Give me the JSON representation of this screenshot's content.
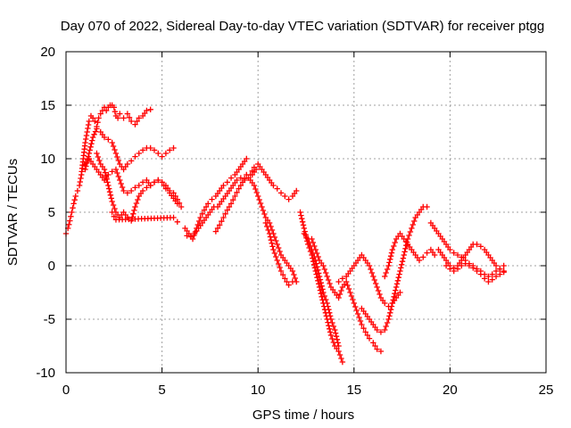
{
  "chart_data": {
    "type": "scatter",
    "title": "Day 070 of 2022, Sidereal Day-to-day VTEC variation (SDTVAR) for receiver ptgg",
    "xlabel": "GPS time / hours",
    "ylabel": "SDTVAR / TECUs",
    "xlim": [
      0,
      25
    ],
    "ylim": [
      -10,
      20
    ],
    "xticks": [
      "0",
      "5",
      "10",
      "15",
      "20",
      "25"
    ],
    "yticks": [
      "-10",
      "-5",
      "0",
      "5",
      "10",
      "15",
      "20"
    ],
    "grid": true,
    "marker": "plus",
    "color": "#ff0000",
    "series": [
      {
        "x": [
          0.0,
          0.1,
          0.2,
          0.3,
          0.4,
          0.5,
          0.6,
          0.7,
          0.8,
          0.9,
          1.0,
          1.1,
          1.2,
          1.3,
          1.4,
          1.5,
          1.6,
          1.7,
          1.8,
          1.9,
          2.0,
          2.1,
          2.2,
          2.3,
          2.4,
          2.5,
          2.6,
          2.7,
          2.8,
          3.0,
          3.2,
          3.4,
          3.6,
          3.8,
          4.0,
          4.2,
          4.4
        ],
        "y": [
          3.0,
          3.5,
          4.2,
          5.0,
          5.8,
          6.5,
          7.0,
          7.5,
          8.5,
          10.0,
          11.5,
          12.5,
          13.5,
          14.0,
          13.8,
          13.5,
          13.0,
          13.8,
          14.2,
          14.5,
          14.8,
          14.5,
          14.8,
          15.0,
          15.0,
          14.8,
          14.0,
          13.8,
          14.2,
          13.8,
          14.2,
          13.5,
          13.2,
          13.8,
          14.0,
          14.5,
          14.6
        ]
      },
      {
        "x": [
          1.0,
          1.2,
          1.4,
          1.6,
          1.8,
          2.0,
          2.2,
          2.4,
          2.6,
          2.8,
          3.0,
          3.2,
          3.4,
          3.6,
          3.8,
          4.0,
          4.2,
          4.4,
          4.6,
          4.8,
          5.0,
          5.2,
          5.4,
          5.6
        ],
        "y": [
          9.0,
          10.5,
          12.0,
          12.8,
          12.5,
          12.0,
          11.8,
          11.5,
          10.5,
          9.5,
          9.0,
          9.5,
          9.8,
          10.2,
          10.5,
          10.8,
          11.0,
          11.0,
          10.8,
          10.5,
          10.2,
          10.5,
          10.8,
          11.0
        ]
      },
      {
        "x": [
          1.0,
          1.2,
          1.4,
          1.6,
          1.8,
          2.0,
          2.2,
          2.4,
          2.6,
          2.8,
          3.0,
          3.2,
          3.4,
          3.6,
          3.8,
          4.0,
          4.2,
          4.4,
          4.6,
          4.8,
          5.0,
          5.2,
          5.4,
          5.6,
          5.8
        ],
        "y": [
          9.5,
          10.0,
          9.5,
          9.0,
          8.5,
          8.0,
          8.5,
          8.8,
          9.0,
          8.0,
          7.0,
          6.8,
          7.0,
          7.3,
          7.5,
          7.8,
          8.0,
          7.5,
          7.8,
          8.0,
          7.8,
          7.2,
          6.8,
          6.3,
          5.8
        ]
      },
      {
        "x": [
          1.6,
          1.8,
          2.0,
          2.2,
          2.4,
          2.6,
          2.8,
          3.0,
          3.2,
          3.4,
          3.6,
          3.8,
          4.0,
          4.2,
          4.4,
          4.6,
          4.8,
          5.0,
          5.2,
          5.4,
          5.6,
          5.8,
          6.0
        ],
        "y": [
          10.5,
          9.5,
          9.0,
          7.5,
          6.0,
          5.0,
          4.5,
          5.0,
          4.5,
          4.2,
          5.5,
          6.5,
          7.0,
          7.3,
          7.5,
          7.8,
          8.0,
          7.8,
          7.5,
          7.0,
          6.8,
          6.2,
          5.5
        ]
      },
      {
        "x": [
          2.4,
          2.5,
          2.6,
          5.6,
          5.8
        ],
        "y": [
          5.0,
          4.6,
          4.3,
          4.5,
          4.1
        ]
      },
      {
        "x": [
          6.2,
          6.4,
          6.6,
          6.8,
          7.0,
          7.2,
          7.4,
          7.6,
          7.8,
          8.0,
          8.2,
          8.4,
          8.6,
          8.8,
          9.0,
          9.2,
          9.4
        ],
        "y": [
          3.5,
          3.0,
          2.5,
          3.5,
          4.5,
          5.2,
          5.8,
          6.2,
          6.5,
          7.0,
          7.5,
          7.8,
          8.2,
          8.5,
          9.0,
          9.5,
          10.0
        ]
      },
      {
        "x": [
          6.3,
          6.5,
          6.7,
          6.9,
          7.1,
          7.3,
          7.5,
          7.7,
          7.9,
          8.1,
          8.3,
          8.5,
          8.7,
          8.9,
          9.1,
          9.3,
          9.5,
          9.7,
          9.9
        ],
        "y": [
          2.8,
          2.7,
          3.0,
          3.5,
          4.0,
          4.5,
          5.0,
          5.5,
          5.5,
          6.0,
          6.5,
          7.0,
          7.5,
          8.0,
          8.2,
          8.0,
          8.2,
          8.5,
          9.0
        ]
      },
      {
        "x": [
          7.8,
          8.0,
          8.2,
          8.4,
          8.6,
          8.8,
          9.0,
          9.2,
          9.4,
          9.6,
          9.8,
          10.0,
          10.2,
          10.4,
          10.6,
          10.8,
          11.0,
          11.2,
          11.4,
          11.6,
          11.8,
          12.0
        ],
        "y": [
          3.2,
          3.8,
          4.5,
          5.2,
          5.8,
          6.5,
          7.2,
          7.8,
          8.5,
          8.5,
          9.2,
          9.5,
          9.0,
          8.5,
          8.0,
          7.5,
          7.2,
          6.8,
          6.5,
          6.2,
          6.5,
          7.0
        ]
      },
      {
        "x": [
          9.6,
          9.8,
          10.0,
          10.2,
          10.4,
          10.6,
          10.8,
          11.0,
          11.2,
          11.4,
          11.6,
          11.8,
          12.0
        ],
        "y": [
          8.0,
          7.5,
          6.5,
          5.5,
          4.5,
          4.0,
          3.0,
          2.0,
          1.0,
          0.5,
          0.0,
          -0.5,
          -1.5
        ]
      },
      {
        "x": [
          10.4,
          10.6,
          10.8,
          11.0,
          11.2,
          11.4,
          11.6,
          11.8
        ],
        "y": [
          4.0,
          3.0,
          1.5,
          0.5,
          -0.5,
          -1.2,
          -1.8,
          -1.5
        ]
      },
      {
        "x": [
          12.2,
          12.4,
          12.6,
          12.8,
          13.0,
          13.2,
          13.4,
          13.6,
          13.8,
          14.0,
          14.2,
          14.4
        ],
        "y": [
          5.0,
          3.5,
          2.0,
          1.0,
          -0.5,
          -2.0,
          -3.5,
          -5.0,
          -6.5,
          -7.5,
          -8.0,
          -9.0
        ]
      },
      {
        "x": [
          12.4,
          12.6,
          12.8,
          13.0,
          13.2,
          13.4,
          13.6,
          13.8,
          14.0,
          14.2
        ],
        "y": [
          3.0,
          2.5,
          1.5,
          0.5,
          -1.0,
          -2.5,
          -3.5,
          -5.0,
          -6.0,
          -7.5
        ]
      },
      {
        "x": [
          12.8,
          13.0,
          13.2,
          13.4,
          13.6,
          13.8,
          14.0,
          14.2,
          14.4,
          14.6,
          14.8,
          15.0,
          15.2,
          15.4,
          15.6,
          15.8,
          16.0,
          16.2,
          16.4
        ],
        "y": [
          2.5,
          1.5,
          0.5,
          0.0,
          -1.0,
          -2.0,
          -2.5,
          -3.0,
          -2.0,
          -1.5,
          -2.5,
          -3.5,
          -4.5,
          -5.5,
          -6.2,
          -6.8,
          -7.2,
          -7.8,
          -8.0
        ]
      },
      {
        "x": [
          14.2,
          14.4,
          14.6,
          14.8,
          15.0,
          15.2,
          15.4,
          15.6,
          15.8,
          16.0,
          16.2,
          16.4,
          16.6,
          16.8,
          17.0,
          17.2,
          17.4
        ],
        "y": [
          -1.5,
          -1.2,
          -1.0,
          -0.5,
          0.0,
          0.5,
          1.0,
          0.5,
          0.0,
          -1.0,
          -2.0,
          -3.0,
          -3.5,
          -3.8,
          -3.5,
          -3.0,
          -2.5
        ]
      },
      {
        "x": [
          15.4,
          15.6,
          15.8,
          16.0,
          16.2,
          16.4,
          16.6,
          16.8,
          17.0,
          17.2,
          17.4,
          17.6,
          17.8,
          18.0,
          18.2,
          18.4,
          18.6,
          18.8
        ],
        "y": [
          -4.0,
          -4.5,
          -5.0,
          -5.5,
          -6.0,
          -6.2,
          -6.0,
          -5.0,
          -3.5,
          -2.0,
          -0.5,
          1.0,
          2.5,
          3.5,
          4.5,
          5.0,
          5.5,
          5.5
        ]
      },
      {
        "x": [
          16.6,
          16.8,
          17.0,
          17.2,
          17.4,
          17.6,
          17.8,
          18.0,
          18.2,
          18.4,
          18.6,
          18.8,
          19.0,
          19.2
        ],
        "y": [
          -1.0,
          0.0,
          1.5,
          2.5,
          3.0,
          2.5,
          2.0,
          1.5,
          1.0,
          0.5,
          0.8,
          1.2,
          1.5,
          1.0
        ]
      },
      {
        "x": [
          19.0,
          19.2,
          19.4,
          19.6,
          19.8,
          20.0,
          20.2,
          20.4,
          20.6,
          20.8,
          21.0,
          21.2,
          21.4,
          21.6,
          21.8,
          22.0,
          22.2,
          22.4,
          22.6,
          22.8
        ],
        "y": [
          4.0,
          3.5,
          3.0,
          2.5,
          2.0,
          1.5,
          1.2,
          1.0,
          0.8,
          0.5,
          0.2,
          0.0,
          -0.3,
          -0.5,
          -0.8,
          -1.0,
          -0.8,
          -0.5,
          -0.3,
          0.0
        ]
      },
      {
        "x": [
          19.4,
          19.6,
          19.8,
          20.0,
          20.2,
          20.4,
          20.6,
          20.8,
          21.0,
          21.2,
          21.4,
          21.6,
          21.8,
          22.0,
          22.2,
          22.4,
          22.6,
          22.8
        ],
        "y": [
          1.5,
          1.0,
          0.5,
          0.0,
          -0.2,
          0.0,
          0.5,
          1.0,
          1.5,
          2.0,
          2.0,
          1.8,
          1.5,
          1.0,
          0.5,
          0.0,
          -0.3,
          -0.5
        ]
      },
      {
        "x": [
          19.8,
          20.0,
          20.2,
          20.4,
          20.6,
          20.8,
          21.0,
          21.2,
          21.4,
          21.6,
          21.8,
          22.0,
          22.2,
          22.4,
          22.6,
          22.8
        ],
        "y": [
          0.0,
          -0.3,
          -0.5,
          -0.3,
          0.0,
          0.2,
          0.0,
          -0.2,
          -0.5,
          -0.8,
          -1.2,
          -1.5,
          -1.3,
          -1.0,
          -0.8,
          -0.6
        ]
      }
    ]
  }
}
